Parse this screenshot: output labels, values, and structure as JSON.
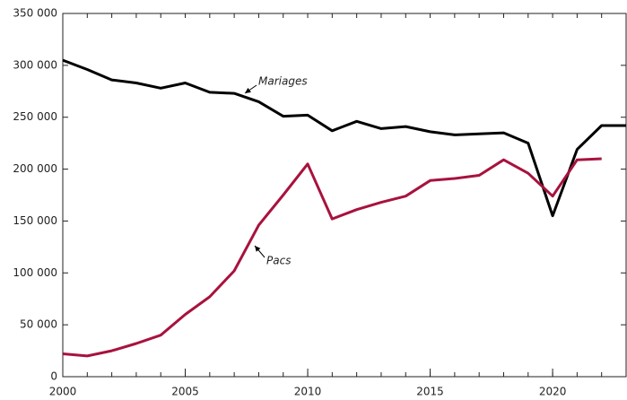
{
  "chart_data": {
    "type": "line",
    "x": [
      2000,
      2001,
      2002,
      2003,
      2004,
      2005,
      2006,
      2007,
      2008,
      2009,
      2010,
      2011,
      2012,
      2013,
      2014,
      2015,
      2016,
      2017,
      2018,
      2019,
      2020,
      2021,
      2022,
      2023
    ],
    "series": [
      {
        "name": "Mariages",
        "color": "#000000",
        "values": [
          305000,
          296000,
          286000,
          283000,
          278000,
          283000,
          274000,
          273000,
          265000,
          251000,
          252000,
          237000,
          246000,
          239000,
          241000,
          236000,
          233000,
          234000,
          235000,
          225000,
          155000,
          219000,
          242000,
          242000
        ]
      },
      {
        "name": "Pacs",
        "color": "#a8123e",
        "values": [
          22000,
          20000,
          25000,
          32000,
          40000,
          60000,
          77000,
          102000,
          146000,
          175000,
          205000,
          152000,
          161000,
          168000,
          174000,
          189000,
          191000,
          194000,
          209000,
          196000,
          174000,
          209000,
          210000,
          null
        ]
      }
    ],
    "xlim": [
      2000,
      2023
    ],
    "xticks": [
      2000,
      2005,
      2010,
      2015,
      2020
    ],
    "ylim": [
      0,
      350000
    ],
    "yticks": [
      0,
      {
        "value": 50000,
        "label": "50 000"
      },
      {
        "value": 100000,
        "label": "100 000"
      },
      {
        "value": 150000,
        "label": "150 000"
      },
      {
        "value": 200000,
        "label": "200 000"
      },
      {
        "value": 250000,
        "label": "250 000"
      },
      {
        "value": 300000,
        "label": "300 000"
      },
      {
        "value": 350000,
        "label": "350 000"
      }
    ],
    "grid": false
  }
}
